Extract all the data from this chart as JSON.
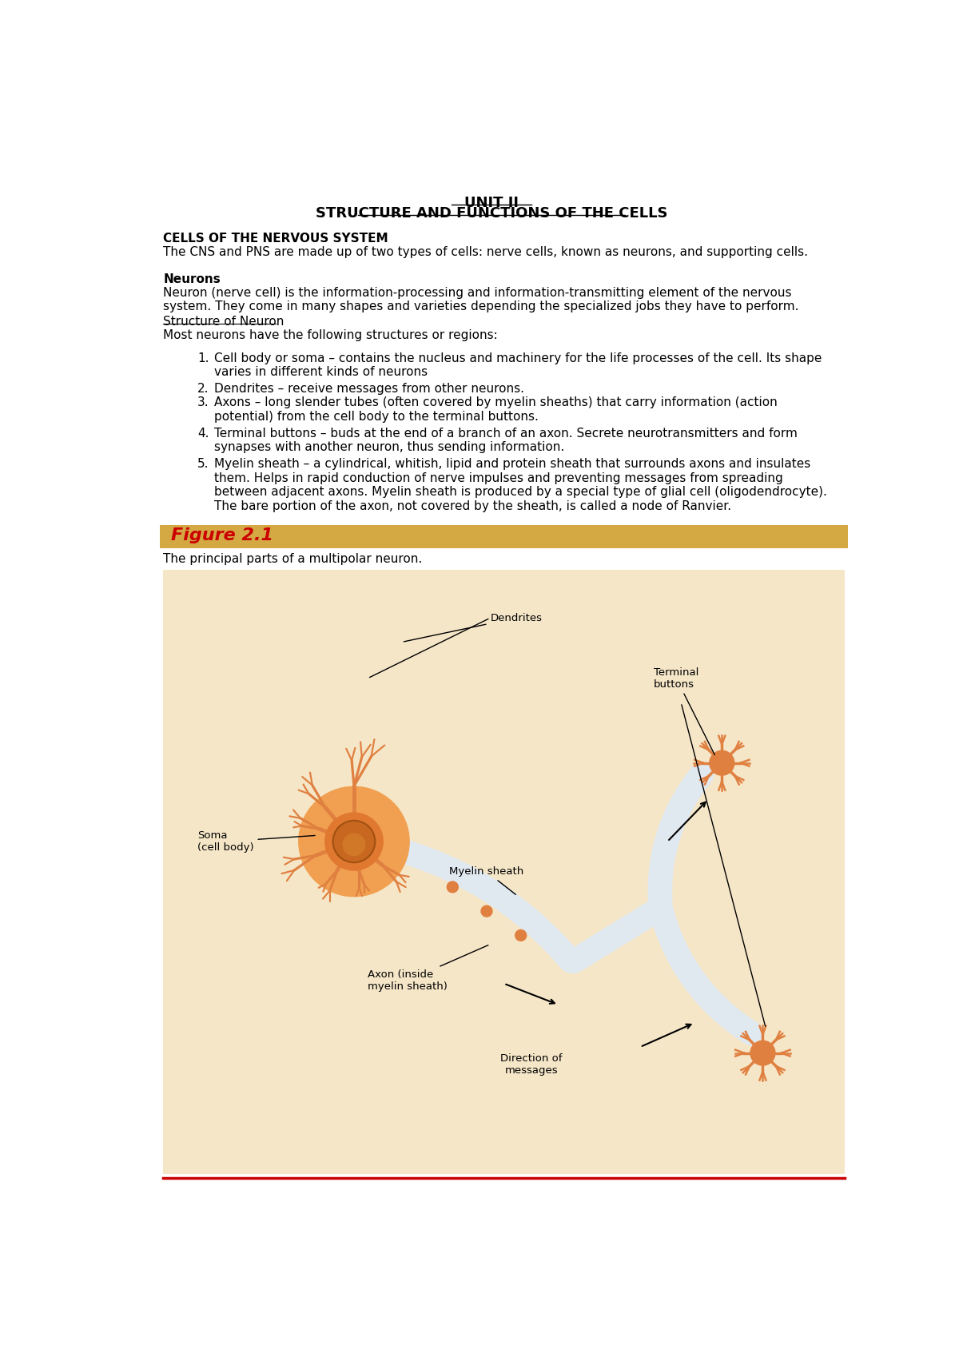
{
  "title_line1": "UNIT II",
  "title_line2": "STRUCTURE AND FUNCTIONS OF THE CELLS",
  "bg_color": "#ffffff",
  "section1_header": "CELLS OF THE NERVOUS SYSTEM",
  "section1_body": "The CNS and PNS are made up of two types of cells: nerve cells, known as neurons, and supporting cells.",
  "section2_header": "Neurons",
  "section2_body": "Neuron (nerve cell) is the information-processing and information-transmitting element of the nervous\nsystem. They come in many shapes and varieties depending the specialized jobs they have to perform.",
  "section3_underline_header": "Structure of Neuron",
  "section3_intro": "Most neurons have the following structures or regions:",
  "list_items": [
    "Cell body or soma – contains the nucleus and machinery for the life processes of the cell. Its shape\nvaries in different kinds of neurons",
    "Dendrites – receive messages from other neurons.",
    "Axons – long slender tubes (often covered by myelin sheaths) that carry information (action\npotential) from the cell body to the terminal buttons.",
    "Terminal buttons – buds at the end of a branch of an axon. Secrete neurotransmitters and form\nsynapses with another neuron, thus sending information.",
    "Myelin sheath – a cylindrical, whitish, lipid and protein sheath that surrounds axons and insulates\nthem. Helps in rapid conduction of nerve impulses and preventing messages from spreading\nbetween adjacent axons. Myelin sheath is produced by a special type of glial cell (oligodendrocyte).\nThe bare portion of the axon, not covered by the sheath, is called a node of Ranvier."
  ],
  "figure_label": "Figure 2.1",
  "figure_caption": "The principal parts of a multipolar neuron.",
  "figure_banner_color": "#D4A843",
  "figure_label_color": "#CC0000",
  "bottom_line_color": "#CC0000",
  "neuron_image_bg": "#F5E6C8",
  "font_size_title": 13,
  "font_size_body": 11,
  "font_size_header": 11,
  "font_size_figure_label": 16
}
